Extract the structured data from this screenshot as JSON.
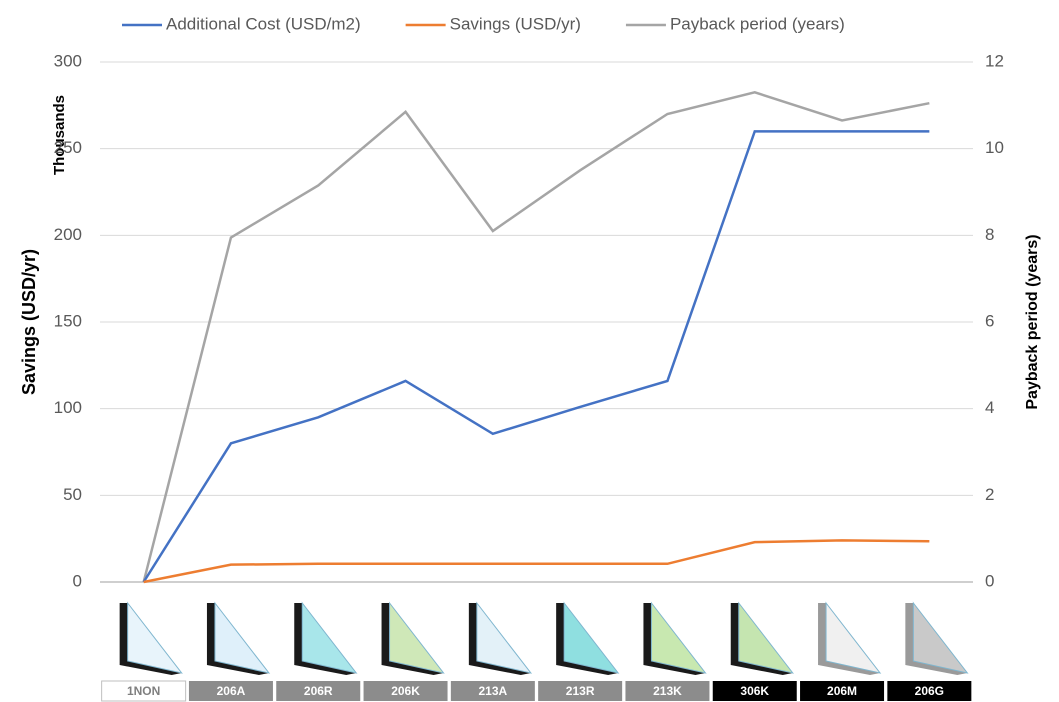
{
  "chart_data": {
    "type": "line",
    "y_units_label": "Thousands",
    "y_label": "Savings (USD/yr)",
    "y2_label": "Payback period (years)",
    "categories": [
      "1NON",
      "206A",
      "206R",
      "206K",
      "213A",
      "213R",
      "213K",
      "306K",
      "206M",
      "206G"
    ],
    "series": [
      {
        "name": "Additional Cost (USD/m2)",
        "color": "#4472c4",
        "values": [
          0,
          80,
          95,
          116,
          85.5,
          101,
          116,
          260,
          260,
          260
        ]
      },
      {
        "name": "Savings (USD/yr)",
        "color": "#ed7d31",
        "values": [
          0,
          10,
          10.5,
          10.5,
          10.5,
          10.5,
          10.5,
          23,
          24,
          23.5
        ]
      },
      {
        "name": "Payback period (years)",
        "color": "#a5a5a5",
        "axis": "y2",
        "values": [
          0,
          7.95,
          9.15,
          10.85,
          8.1,
          9.5,
          10.8,
          11.3,
          10.65,
          11.05
        ]
      }
    ],
    "ylim": [
      0,
      300
    ],
    "yticks": [
      0,
      50,
      100,
      150,
      200,
      250,
      300
    ],
    "y2lim": [
      0,
      12
    ],
    "y2ticks": [
      0,
      2,
      4,
      6,
      8,
      10,
      12
    ],
    "grid": true,
    "legend": "top"
  }
}
